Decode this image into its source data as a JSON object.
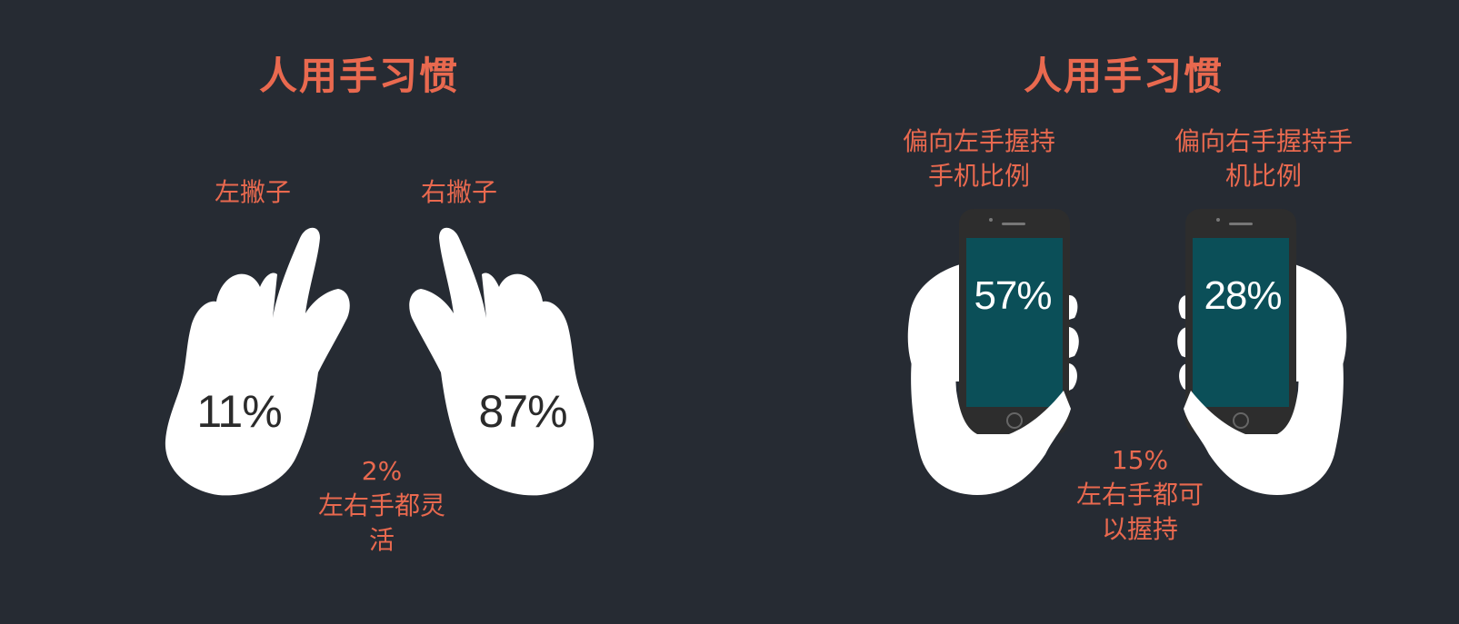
{
  "colors": {
    "background": "#262b33",
    "accent": "#e9694f",
    "hand": "#ffffff",
    "phone_body": "#2d2d2d",
    "phone_screen": "#0b4f58"
  },
  "left_panel": {
    "title": "人用手习惯",
    "left_hand": {
      "label": "左撇子",
      "percent": "11%",
      "icon": "pointing-left-hand-icon"
    },
    "right_hand": {
      "label": "右撇子",
      "percent": "87%",
      "icon": "pointing-right-hand-icon"
    },
    "both_hands": {
      "percent": "2%",
      "label_line1": "左右手都灵",
      "label_line2": "活"
    }
  },
  "right_panel": {
    "title": "人用手习惯",
    "left_phone": {
      "label_line1": "偏向左手握持",
      "label_line2": "手机比例",
      "percent": "57%",
      "icon": "left-hand-holding-phone-icon"
    },
    "right_phone": {
      "label_line1": "偏向右手握持手",
      "label_line2": "机比例",
      "percent": "28%",
      "icon": "right-hand-holding-phone-icon"
    },
    "both_phone": {
      "percent": "15%",
      "label_line1": "左右手都可",
      "label_line2": "以握持"
    }
  }
}
